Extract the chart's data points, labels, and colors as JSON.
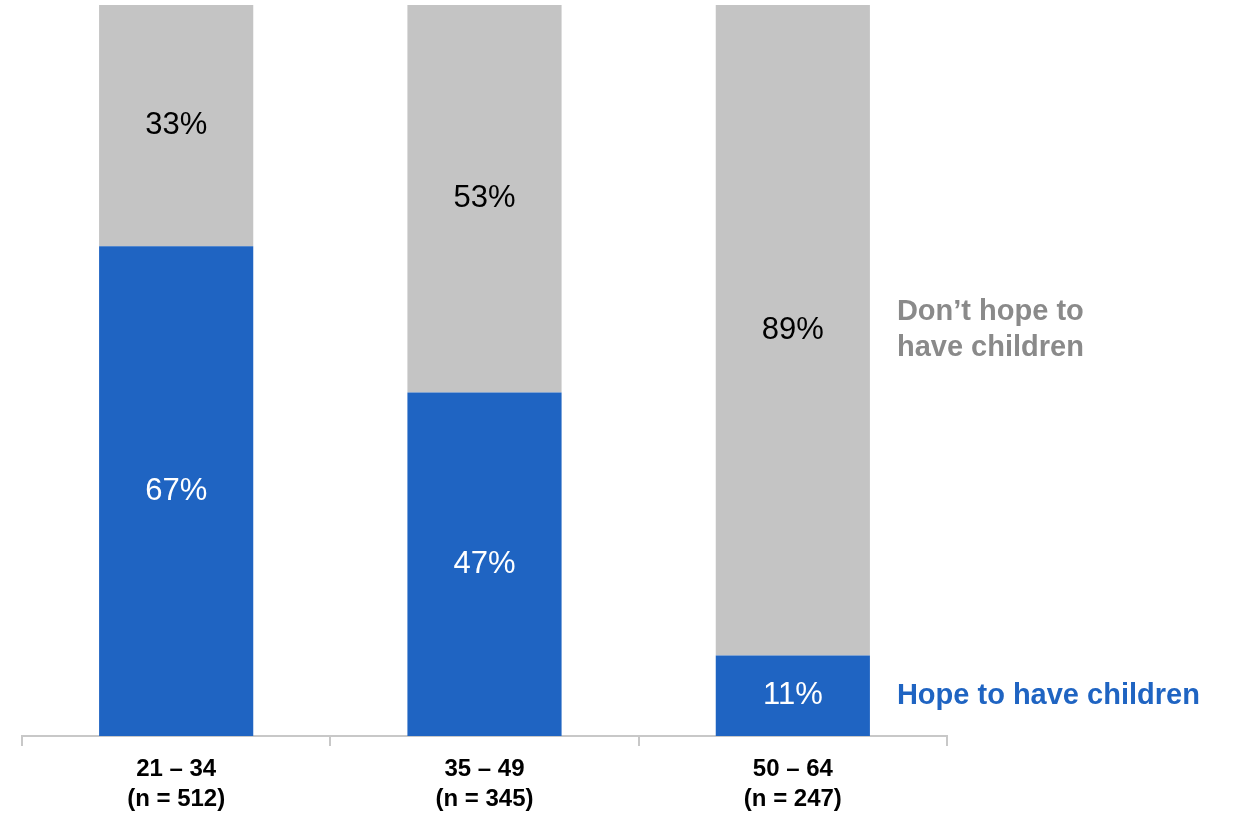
{
  "chart_data": {
    "type": "bar",
    "stacked": true,
    "categories": [
      "21 – 34\n(n = 512)",
      "35 – 49\n(n = 345)",
      "50 – 64\n(n = 247)"
    ],
    "series": [
      {
        "name": "Hope to have children",
        "color": "#1f64c2",
        "values": [
          67,
          47,
          11
        ],
        "value_labels": [
          "67%",
          "47%",
          "11%"
        ]
      },
      {
        "name": "Don’t hope to have children",
        "color": "#c4c4c4",
        "values": [
          33,
          53,
          89
        ],
        "value_labels": [
          "33%",
          "53%",
          "89%"
        ]
      }
    ],
    "tick_labels": "x",
    "legend": false
  }
}
